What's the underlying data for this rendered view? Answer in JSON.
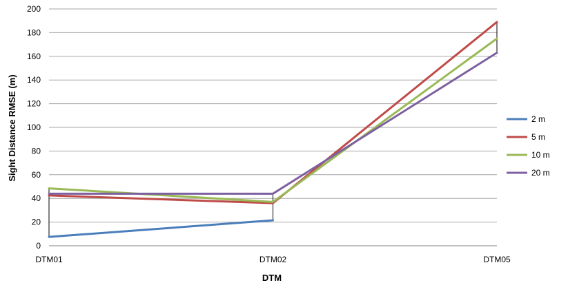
{
  "chart_data": {
    "type": "line",
    "title": "",
    "xlabel": "DTM",
    "ylabel": "Sight Distance RMSE (m)",
    "categories": [
      "DTM01",
      "DTM02",
      "DTM05"
    ],
    "ylim": [
      0,
      200
    ],
    "yticks": [
      "0",
      "20",
      "40",
      "60",
      "80",
      "100",
      "120",
      "140",
      "160",
      "180",
      "200"
    ],
    "grid": true,
    "legend_position": "right",
    "high_low_lines": true,
    "series": [
      {
        "name": "2 m",
        "color": "#4a7ebb",
        "values": [
          7.5,
          21.5,
          null
        ]
      },
      {
        "name": "5 m",
        "color": "#be4b48",
        "values": [
          42.5,
          36,
          189
        ]
      },
      {
        "name": "10 m",
        "color": "#98b954",
        "values": [
          48.5,
          37,
          175
        ]
      },
      {
        "name": "20 m",
        "color": "#7d60a0",
        "values": [
          44,
          44,
          163
        ]
      }
    ]
  }
}
